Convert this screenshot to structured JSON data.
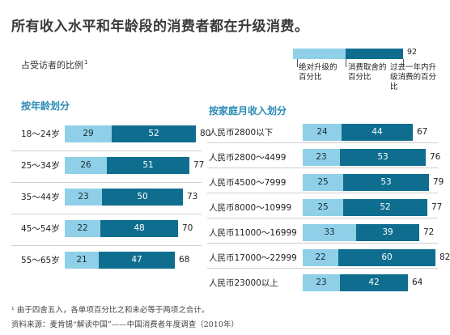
{
  "title": "所有收入水平和年龄段的消费者都在升级消费。",
  "subtitle": "占受访者的比例",
  "subtitle_sup": "1",
  "legend": {
    "item_1": "绝对升级的百分比",
    "item_2": "消费取舍的百分比",
    "item_3": "过去一年内升级消费的百分比",
    "total": "92",
    "colors": {
      "light": "#8fd0e8",
      "dark": "#0f6e8f"
    }
  },
  "chart_data": [
    {
      "type": "bar",
      "title": "按年龄划分",
      "categories": [
        "18～24岁",
        "25～34岁",
        "35～44岁",
        "45～54岁",
        "55～65岁"
      ],
      "series": [
        {
          "name": "绝对升级的百分比",
          "values": [
            29,
            26,
            23,
            22,
            21
          ]
        },
        {
          "name": "消费取舍的百分比",
          "values": [
            52,
            51,
            50,
            48,
            47
          ]
        },
        {
          "name": "过去一年内升级消费的百分比",
          "values": [
            80,
            77,
            73,
            70,
            68
          ]
        }
      ]
    },
    {
      "type": "bar",
      "title": "按家庭月收入划分",
      "categories": [
        "人民币2800以下",
        "人民币2800～4499",
        "人民币4500～7999",
        "人民币8000～10999",
        "人民币11000～16999",
        "人民币17000～22999",
        "人民币23000以上"
      ],
      "series": [
        {
          "name": "绝对升级的百分比",
          "values": [
            24,
            23,
            25,
            25,
            33,
            22,
            23
          ]
        },
        {
          "name": "消费取舍的百分比",
          "values": [
            44,
            53,
            53,
            52,
            39,
            60,
            42
          ]
        },
        {
          "name": "过去一年内升级消费的百分比",
          "values": [
            67,
            76,
            79,
            77,
            72,
            82,
            64
          ]
        }
      ]
    }
  ],
  "footnote_1": "¹ 由于四舍五入，各单项百分比之和未必等于两项之合计。",
  "footnote_2": "资料来源：麦肯锡“解读中国”——中国消费者年度调查（2010年）"
}
